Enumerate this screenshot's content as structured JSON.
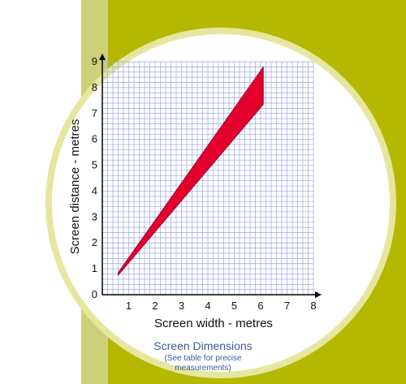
{
  "colors": {
    "background": "#ffffff",
    "olive": "#b5b800",
    "olive_stripe": "#cfcf7a",
    "disc_border": "#e6e6a0",
    "grid": "#9aa7e6",
    "fill": "#e3002d",
    "caption": "#3a5c9c"
  },
  "chart_data": {
    "type": "area",
    "xlabel": "Screen width - metres",
    "ylabel": "Screen distance - metres",
    "xlim": [
      0,
      8
    ],
    "ylim": [
      0,
      9
    ],
    "x_ticks": [
      "1",
      "2",
      "3",
      "4",
      "5",
      "6",
      "7",
      "8"
    ],
    "y_ticks": [
      "0",
      "1",
      "2",
      "3",
      "4",
      "5",
      "6",
      "7",
      "8",
      "9"
    ],
    "grid": true,
    "grid_minor_step": 0.2,
    "series": [
      {
        "upper": [
          [
            0.6,
            0.85
          ],
          [
            6.1,
            8.8
          ]
        ],
        "lower": [
          [
            0.6,
            0.75
          ],
          [
            6.1,
            7.35
          ]
        ]
      }
    ]
  },
  "caption": {
    "title": "Screen Dimensions",
    "note_line1": "(See table for precise",
    "note_line2": "measurements)"
  }
}
